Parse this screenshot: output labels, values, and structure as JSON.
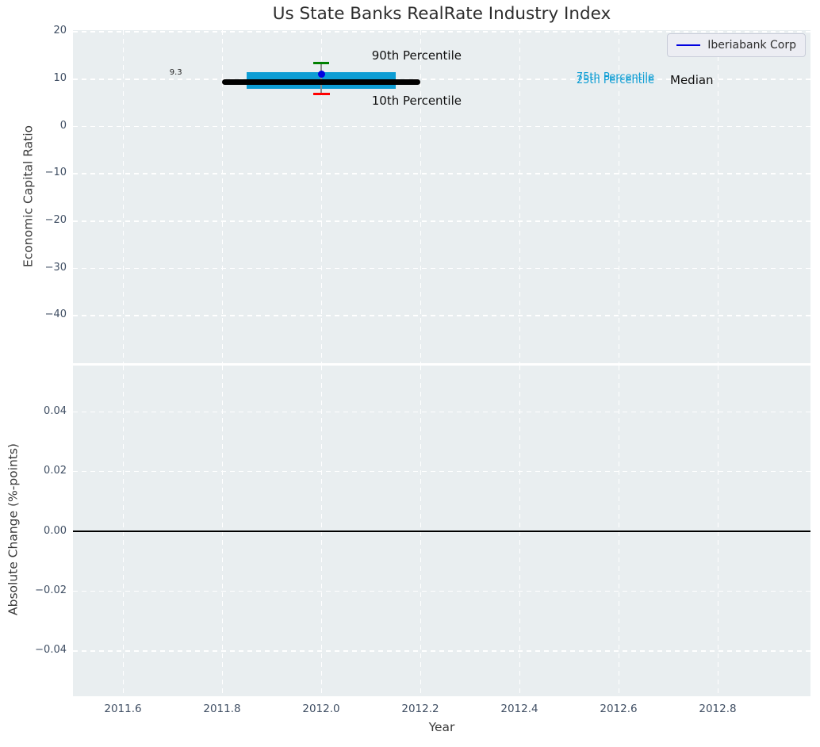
{
  "chart_data": {
    "type": "box-whisker",
    "title": "Us State Banks RealRate Industry Index",
    "xlabel": "Year",
    "x_tick_values": [
      2011.6,
      2011.8,
      2012.0,
      2012.2,
      2012.4,
      2012.6,
      2012.8
    ],
    "x_tick_labels": [
      "2011.6",
      "2011.8",
      "2012.0",
      "2012.2",
      "2012.4",
      "2012.6",
      "2012.8"
    ],
    "xlim": [
      2011.5,
      2012.99
    ],
    "grid": "white dashed on light grey background",
    "colors": {
      "plot_background": "#e9eef0",
      "grid": "#ffffff",
      "tick_text": "#3f4e63",
      "box": "#0d9dd4",
      "median": "#000000",
      "p90_cap": "#008000",
      "p10_cap": "#ff0000",
      "series_blue": "#0000e0"
    },
    "panels": [
      {
        "ylabel": "Economic Capital Ratio",
        "y_tick_values": [
          20,
          10,
          0,
          -10,
          -20,
          -30,
          -40
        ],
        "y_tick_labels": [
          "20",
          "10",
          "0",
          "−10",
          "−20",
          "−30",
          "−40"
        ],
        "ylim": [
          -50.6,
          20.3
        ],
        "legend_label": "Iberiabank Corp",
        "legend_position": "upper right",
        "median": {
          "value": 9.3,
          "label": "9.3",
          "x_start": 2011.8,
          "x_end": 2012.2,
          "color": "#000000"
        },
        "box": {
          "p25": 7.9,
          "p75": 11.3,
          "x_start": 2011.85,
          "x_end": 2012.15,
          "color": "#0d9dd4"
        },
        "whisker": {
          "x": 2012.0,
          "p90": 13.3,
          "p10": 6.7,
          "p90_color": "#008000",
          "p10_color": "#ff0000",
          "line_color": "#8a8a8a"
        },
        "point": {
          "name": "Iberiabank Corp",
          "x": 2012.0,
          "y": 11.0,
          "color": "#0000e0"
        },
        "annotations": [
          {
            "text": "90th Percentile",
            "x": 2012.102,
            "y": 16.2,
            "color": "#111111",
            "size": 15
          },
          {
            "text": "10th Percentile",
            "x": 2012.102,
            "y": 6.65,
            "color": "#111111",
            "size": 15
          },
          {
            "text": "75th Percentile",
            "x": 2012.515,
            "y": 11.36,
            "color": "#0d9dd4",
            "size": 13
          },
          {
            "text": "25th Percentile",
            "x": 2012.515,
            "y": 10.69,
            "color": "#0d9dd4",
            "size": 13
          },
          {
            "text": "Median",
            "x": 2012.704,
            "y": 11.03,
            "color": "#111111",
            "size": 15
          },
          {
            "text": "9.3",
            "x": 2011.694,
            "y": 12.2,
            "color": "#222222",
            "size": 10
          }
        ]
      },
      {
        "ylabel": "Absolute Change (%-points)",
        "y_tick_values": [
          0.04,
          0.02,
          0.0,
          -0.02,
          -0.04
        ],
        "y_tick_labels": [
          "0.04",
          "0.02",
          "0.00",
          "−0.02",
          "−0.04"
        ],
        "ylim": [
          -0.055,
          0.055
        ],
        "zero_line": 0.0,
        "series": []
      }
    ]
  }
}
